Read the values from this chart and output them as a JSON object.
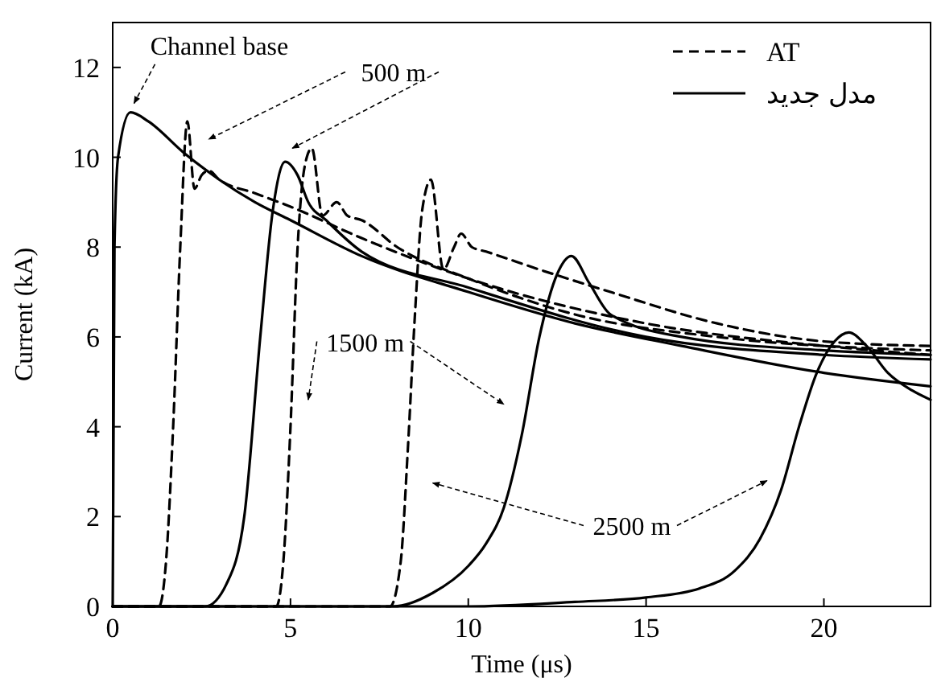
{
  "chart_data": {
    "type": "line",
    "xlabel": "Time (μs)",
    "ylabel": "Current (kA)",
    "xlim": [
      0,
      23
    ],
    "ylim": [
      0,
      13
    ],
    "xticks": [
      0,
      5,
      10,
      15,
      20
    ],
    "yticks": [
      0,
      2,
      4,
      6,
      8,
      10,
      12
    ],
    "grid": false,
    "legend": "top right",
    "series": [
      {
        "color": "#000000",
        "line_style": "solid",
        "x": [
          0,
          0.05,
          0.15,
          0.5,
          1,
          2,
          3,
          4,
          5,
          7,
          10,
          13,
          16,
          20,
          23
        ],
        "values": [
          0,
          8,
          10,
          11,
          10.8,
          10.1,
          9.5,
          9,
          8.6,
          7.8,
          7,
          6.3,
          5.8,
          5.2,
          4.9
        ]
      },
      {
        "name": "AT",
        "color": "#000000",
        "line_style": "dashed",
        "x": [
          0,
          1.3,
          1.5,
          1.7,
          1.9,
          2.1,
          2.3,
          2.5,
          2.7,
          3,
          4,
          5,
          7,
          10,
          15,
          20,
          23
        ],
        "values": [
          0,
          0,
          1,
          4,
          8,
          10.8,
          9.3,
          9.6,
          9.7,
          9.5,
          9.2,
          8.9,
          8.2,
          7.3,
          6.3,
          5.8,
          5.6
        ]
      },
      {
        "name": "مدل جدید",
        "color": "#000000",
        "line_style": "solid",
        "x": [
          0,
          2.6,
          3.2,
          3.7,
          4.15,
          4.5,
          4.85,
          5.2,
          5.5,
          6,
          7,
          10,
          15,
          20,
          23
        ],
        "values": [
          0,
          0,
          0.5,
          2,
          6,
          8.8,
          9.9,
          9.6,
          9,
          8.6,
          7.9,
          7.1,
          6,
          5.6,
          5.5
        ]
      },
      {
        "color": "#000000",
        "line_style": "dashed",
        "x": [
          0,
          4.6,
          4.8,
          5,
          5.2,
          5.4,
          5.6,
          5.9,
          6.3,
          6.6,
          7,
          8,
          10,
          13,
          17,
          23
        ],
        "values": [
          0,
          0,
          1,
          4,
          8,
          9.8,
          10.2,
          8.7,
          9,
          8.7,
          8.6,
          8,
          7.3,
          6.5,
          6,
          5.7
        ]
      },
      {
        "color": "#000000",
        "line_style": "solid",
        "x": [
          0,
          7.9,
          9,
          10,
          10.5,
          11,
          11.5,
          12,
          12.5,
          12.9,
          13.4,
          14,
          16,
          20,
          23
        ],
        "values": [
          0,
          0,
          0.3,
          0.9,
          1.4,
          2.2,
          3.8,
          6,
          7.4,
          7.8,
          7.2,
          6.5,
          6,
          5.7,
          5.6
        ]
      },
      {
        "color": "#000000",
        "line_style": "dashed",
        "x": [
          0,
          7.8,
          8.1,
          8.3,
          8.5,
          8.7,
          8.95,
          9.3,
          9.6,
          9.8,
          10.1,
          10.5,
          12,
          14,
          17,
          20,
          23
        ],
        "values": [
          0,
          0,
          1,
          3.5,
          6.5,
          8.8,
          9.5,
          7.5,
          8,
          8.3,
          8,
          7.9,
          7.5,
          7,
          6.3,
          5.9,
          5.8
        ]
      },
      {
        "color": "#000000",
        "line_style": "solid",
        "x": [
          0,
          10,
          13,
          15,
          16.5,
          17.5,
          18.2,
          18.8,
          19.3,
          19.8,
          20.3,
          20.7,
          21.2,
          21.8,
          22.5,
          23
        ],
        "values": [
          0,
          0,
          0.1,
          0.2,
          0.4,
          0.8,
          1.5,
          2.6,
          4,
          5.2,
          5.9,
          6.1,
          5.8,
          5.2,
          4.8,
          4.6
        ]
      }
    ],
    "annotations": [
      "Channel base",
      "500 m",
      "1500 m",
      "2500 m"
    ]
  }
}
